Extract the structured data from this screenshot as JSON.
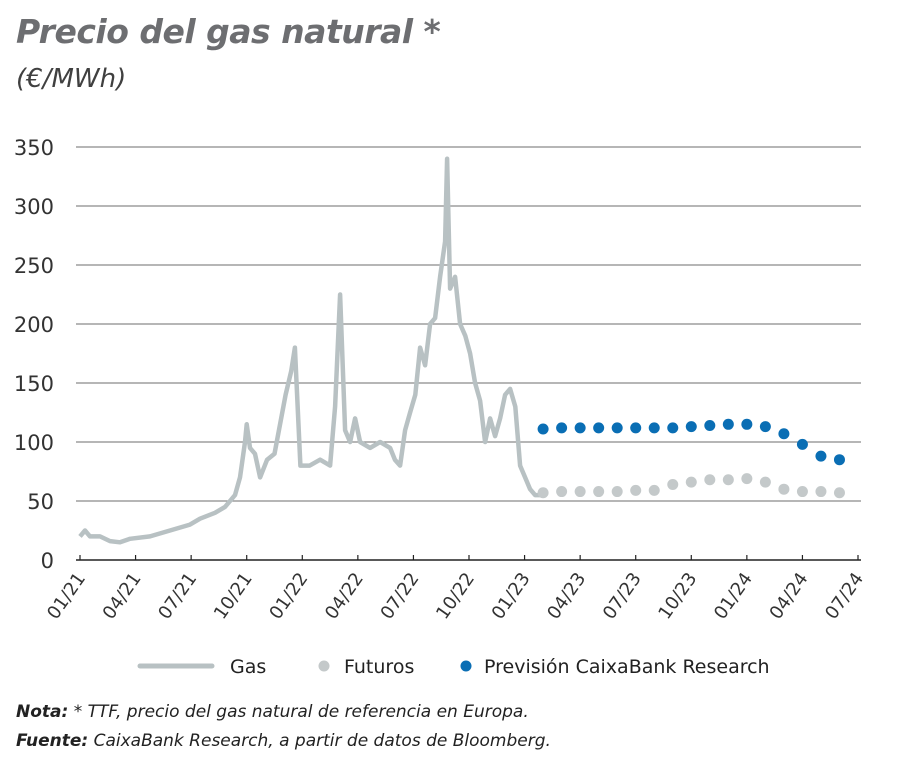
{
  "chart_data": {
    "type": "line",
    "title": "Precio del gas natural *",
    "subtitle": "(€/MWh)",
    "xlabel": "",
    "ylabel": "",
    "x_unit": "months since 01/21",
    "ylim": [
      0,
      350
    ],
    "yticks": [
      0,
      50,
      100,
      150,
      200,
      250,
      300,
      350
    ],
    "xlim": [
      0,
      42
    ],
    "xticks": [
      {
        "m": 0,
        "label": "01/21"
      },
      {
        "m": 3,
        "label": "04/21"
      },
      {
        "m": 6,
        "label": "07/21"
      },
      {
        "m": 9,
        "label": "10/21"
      },
      {
        "m": 12,
        "label": "01/22"
      },
      {
        "m": 15,
        "label": "04/22"
      },
      {
        "m": 18,
        "label": "07/22"
      },
      {
        "m": 21,
        "label": "10/22"
      },
      {
        "m": 24,
        "label": "01/23"
      },
      {
        "m": 27,
        "label": "04/23"
      },
      {
        "m": 30,
        "label": "07/23"
      },
      {
        "m": 33,
        "label": "10/23"
      },
      {
        "m": 36,
        "label": "01/24"
      },
      {
        "m": 39,
        "label": "04/24"
      },
      {
        "m": 42,
        "label": "07/24"
      }
    ],
    "grid": true,
    "legend_position": "bottom",
    "series": [
      {
        "name": "Gas",
        "kind": "line",
        "color": "#b8c1c3",
        "x": [
          0,
          0.27,
          0.54,
          1.08,
          1.62,
          2.16,
          2.7,
          3.78,
          4.86,
          5.94,
          6.48,
          7.29,
          7.83,
          8.37,
          8.64,
          8.91,
          9.0,
          9.18,
          9.45,
          9.72,
          10.1,
          10.5,
          11.1,
          11.4,
          11.6,
          11.9,
          12.4,
          12.96,
          13.5,
          13.77,
          14.04,
          14.31,
          14.58,
          14.85,
          15.12,
          15.66,
          16.2,
          16.74,
          17.0,
          17.28,
          17.55,
          17.82,
          18.1,
          18.36,
          18.63,
          18.9,
          19.17,
          19.44,
          19.71,
          19.82,
          19.98,
          20.25,
          20.52,
          20.8,
          21.06,
          21.33,
          21.6,
          21.87,
          22.14,
          22.41,
          22.68,
          22.95,
          23.22,
          23.5,
          23.76,
          24.03,
          24.3,
          24.57,
          24.84
        ],
        "y": [
          20,
          25,
          20,
          20,
          16,
          15,
          18,
          20,
          25,
          30,
          35,
          40,
          45,
          55,
          70,
          100,
          115,
          95,
          90,
          70,
          85,
          90,
          140,
          160,
          180,
          80,
          80,
          85,
          80,
          130,
          225,
          110,
          100,
          120,
          100,
          95,
          100,
          95,
          85,
          80,
          110,
          125,
          140,
          180,
          165,
          200,
          205,
          240,
          270,
          340,
          230,
          240,
          200,
          190,
          175,
          150,
          135,
          100,
          120,
          105,
          120,
          140,
          145,
          130,
          80,
          70,
          60,
          55,
          55
        ]
      },
      {
        "name": "Futuros",
        "kind": "dots",
        "color": "#c4c9ca",
        "x": [
          25,
          26,
          27,
          28,
          29,
          30,
          31,
          32,
          33,
          34,
          35,
          36,
          37,
          38,
          39,
          40,
          41
        ],
        "y": [
          57,
          58,
          58,
          58,
          58,
          59,
          59,
          64,
          66,
          68,
          68,
          69,
          66,
          60,
          58,
          58,
          57
        ]
      },
      {
        "name": "Previsión CaixaBank Research",
        "kind": "dots",
        "color": "#0a6eb4",
        "x": [
          25,
          26,
          27,
          28,
          29,
          30,
          31,
          32,
          33,
          34,
          35,
          36,
          37,
          38,
          39,
          40,
          41
        ],
        "y": [
          111,
          112,
          112,
          112,
          112,
          112,
          112,
          112,
          113,
          114,
          115,
          115,
          113,
          107,
          98,
          88,
          85
        ]
      }
    ]
  },
  "notes": {
    "nota_label": "Nota:",
    "nota_text": " * TTF, precio del gas natural de referencia en Europa.",
    "fuente_label": "Fuente:",
    "fuente_text": " CaixaBank Research, a partir de datos de Bloomberg."
  }
}
